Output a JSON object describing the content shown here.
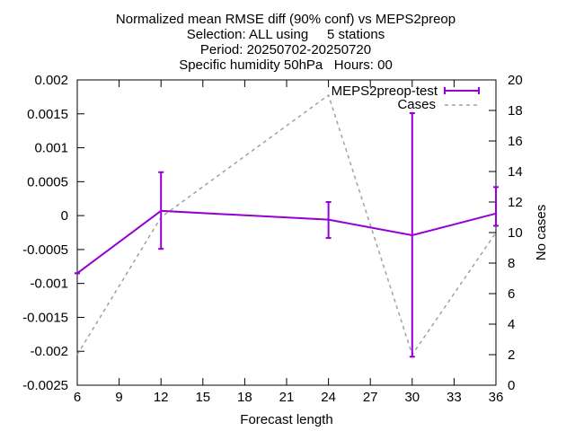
{
  "chart_data": {
    "type": "line",
    "title_lines": [
      "Normalized mean RMSE diff (90% conf) vs MEPS2preop",
      "Selection: ALL using     5 stations",
      "Period: 20250702-20250720",
      "Specific humidity 50hPa   Hours: 00"
    ],
    "xlabel": "Forecast length",
    "ylabel_right": "No cases",
    "xlim": [
      6,
      36
    ],
    "ylim": [
      -0.0025,
      0.002
    ],
    "y2lim": [
      0,
      20
    ],
    "x_ticks": [
      "6",
      "9",
      "12",
      "15",
      "18",
      "21",
      "24",
      "27",
      "30",
      "33",
      "36"
    ],
    "y_ticks": [
      "0.002",
      "0.0015",
      "0.001",
      "0.0005",
      "0",
      "-0.0005",
      "-0.001",
      "-0.0015",
      "-0.002",
      "-0.0025"
    ],
    "y2_ticks": [
      "20",
      "18",
      "16",
      "14",
      "12",
      "10",
      "8",
      "6",
      "4",
      "2",
      "0"
    ],
    "grid": false,
    "legend_position": "top-right",
    "series": [
      {
        "name": "MEPS2preop-test",
        "color": "#9400d3",
        "axis": "left",
        "x": [
          6,
          12,
          24,
          30,
          36
        ],
        "y": [
          -0.00085,
          7e-05,
          -6e-05,
          -0.00029,
          3e-05
        ],
        "err_low": [
          -0.00085,
          -0.00049,
          -0.00033,
          -0.00208,
          -0.00015
        ],
        "err_high": [
          -0.00085,
          0.00064,
          0.0002,
          0.00151,
          0.00042
        ]
      },
      {
        "name": "Cases",
        "color": "#a0a0a0",
        "axis": "right",
        "style": "dashed",
        "x": [
          6,
          12,
          24,
          30,
          36
        ],
        "y": [
          2,
          11,
          19,
          2,
          10
        ]
      }
    ]
  }
}
